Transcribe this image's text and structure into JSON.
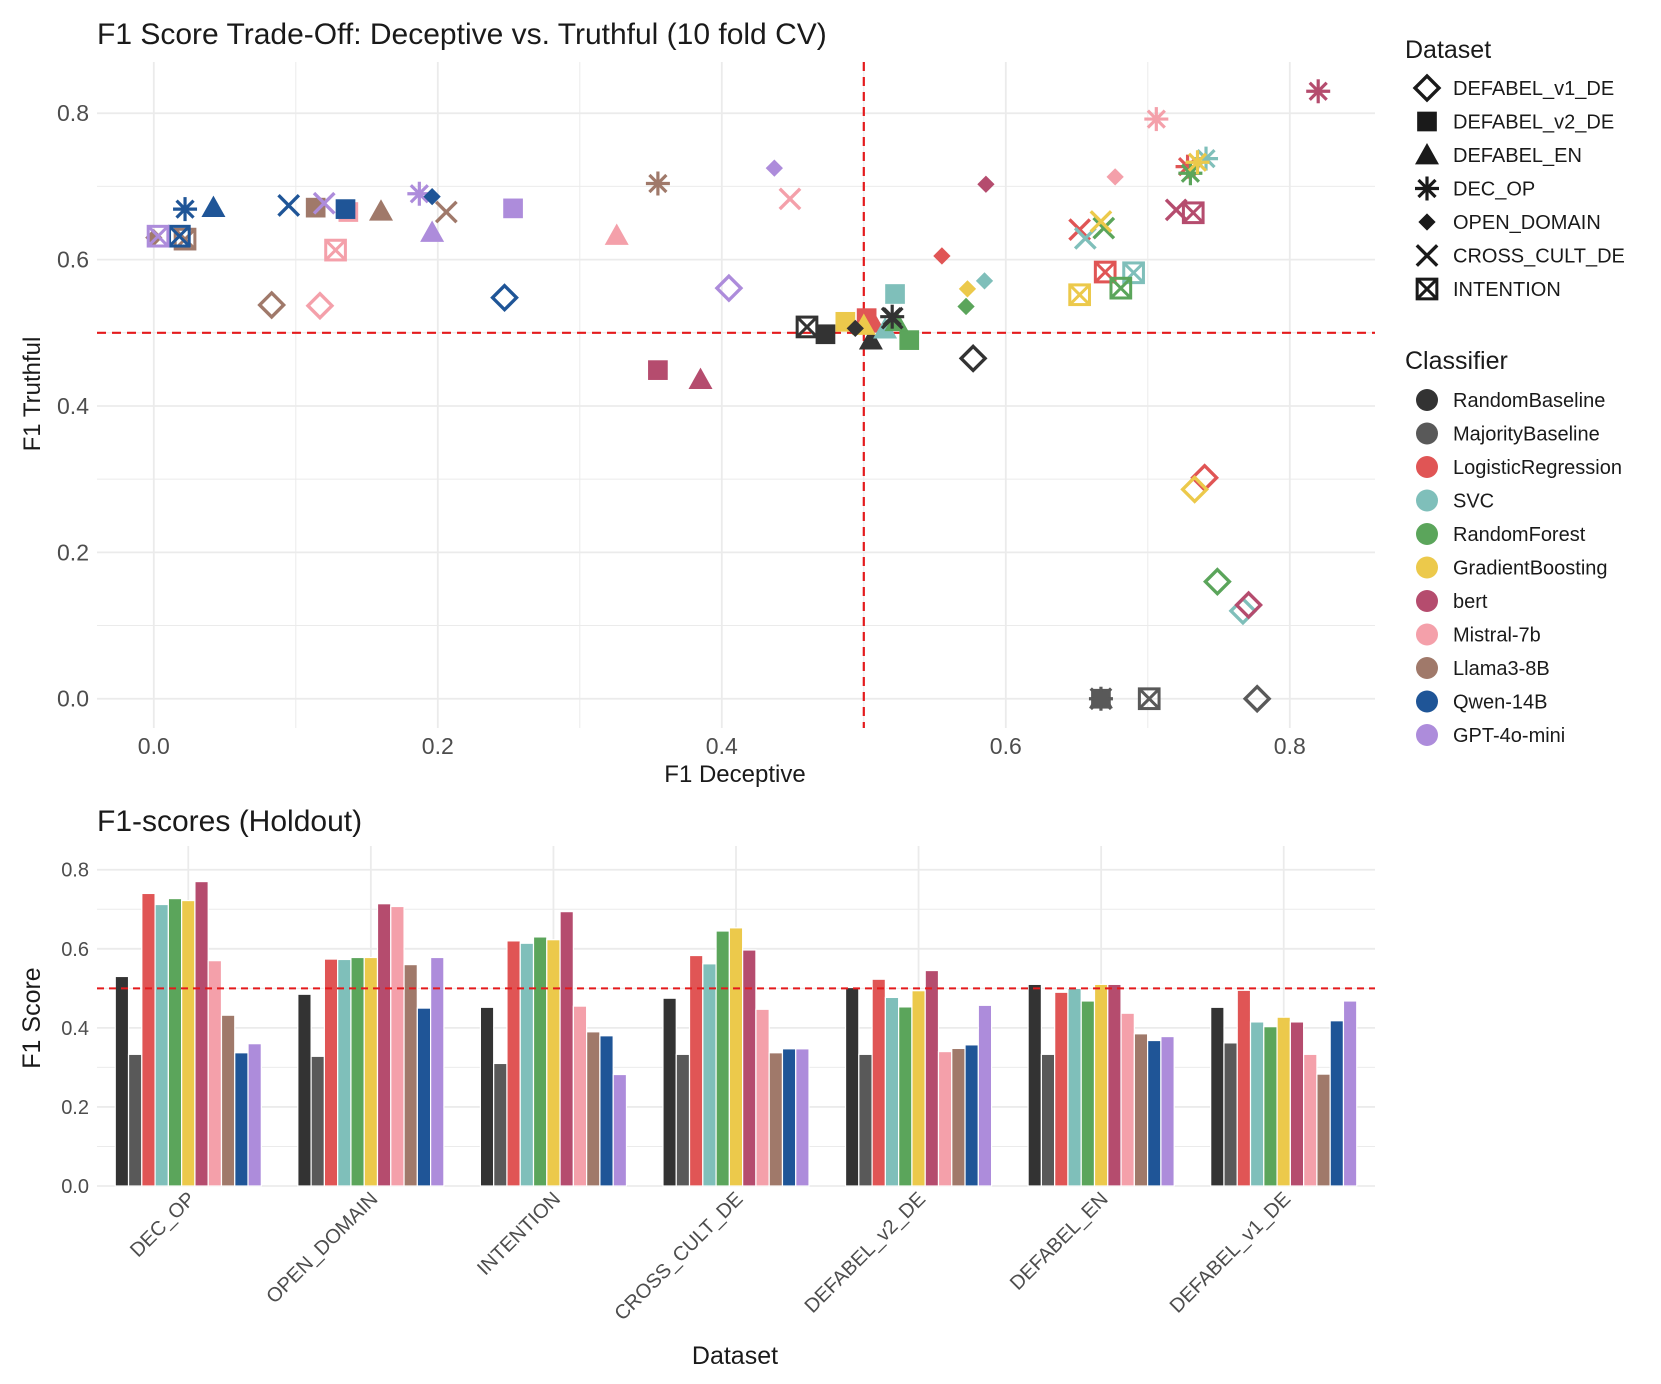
{
  "colors": {
    "grid": "#ebebeb",
    "ref_line": "#e41a1c",
    "axis_text": "#4d4d4d",
    "title_text": "#1a1a1a"
  },
  "classifiers": [
    {
      "name": "RandomBaseline",
      "color": "#333333"
    },
    {
      "name": "MajorityBaseline",
      "color": "#595959"
    },
    {
      "name": "LogisticRegression",
      "color": "#e05555"
    },
    {
      "name": "SVC",
      "color": "#7fbfba"
    },
    {
      "name": "RandomForest",
      "color": "#5ba55b"
    },
    {
      "name": "GradientBoosting",
      "color": "#ecc94b"
    },
    {
      "name": "bert",
      "color": "#b54c6e"
    },
    {
      "name": "Mistral-7b",
      "color": "#f4a0aa"
    },
    {
      "name": "Llama3-8B",
      "color": "#a0796a"
    },
    {
      "name": "Qwen-14B",
      "color": "#1f5597"
    },
    {
      "name": "GPT-4o-mini",
      "color": "#ad8cdb"
    }
  ],
  "datasets_legend": [
    {
      "name": "DEFABEL_v1_DE",
      "shape": "diamond-open"
    },
    {
      "name": "DEFABEL_v2_DE",
      "shape": "square"
    },
    {
      "name": "DEFABEL_EN",
      "shape": "triangle"
    },
    {
      "name": "DEC_OP",
      "shape": "asterisk"
    },
    {
      "name": "OPEN_DOMAIN",
      "shape": "diamond"
    },
    {
      "name": "CROSS_CULT_DE",
      "shape": "cross"
    },
    {
      "name": "INTENTION",
      "shape": "boxx"
    }
  ],
  "legend": {
    "dataset_title": "Dataset",
    "classifier_title": "Classifier"
  },
  "chart_data": [
    {
      "type": "scatter",
      "title": "F1 Score Trade-Off: Deceptive vs. Truthful (10 fold CV)",
      "xlabel": "F1 Deceptive",
      "ylabel": "F1 Truthful",
      "xlim": [
        -0.04,
        0.86
      ],
      "ylim": [
        -0.04,
        0.87
      ],
      "xticks": [
        0.0,
        0.2,
        0.4,
        0.6,
        0.8
      ],
      "yticks": [
        0.0,
        0.2,
        0.4,
        0.6,
        0.8
      ],
      "xtick_labels": [
        "0.0",
        "0.2",
        "0.4",
        "0.6",
        "0.8"
      ],
      "ytick_labels": [
        "0.0",
        "0.2",
        "0.4",
        "0.6",
        "0.8"
      ],
      "ref_x": 0.5,
      "ref_y": 0.5,
      "grid": true,
      "points": [
        {
          "dataset": "DEFABEL_v1_DE",
          "classifier": "RandomBaseline",
          "x": 0.577,
          "y": 0.465
        },
        {
          "dataset": "DEFABEL_v1_DE",
          "classifier": "MajorityBaseline",
          "x": 0.777,
          "y": 0.0
        },
        {
          "dataset": "DEFABEL_v1_DE",
          "classifier": "LogisticRegression",
          "x": 0.74,
          "y": 0.302
        },
        {
          "dataset": "DEFABEL_v1_DE",
          "classifier": "SVC",
          "x": 0.767,
          "y": 0.12
        },
        {
          "dataset": "DEFABEL_v1_DE",
          "classifier": "RandomForest",
          "x": 0.749,
          "y": 0.16
        },
        {
          "dataset": "DEFABEL_v1_DE",
          "classifier": "GradientBoosting",
          "x": 0.733,
          "y": 0.286
        },
        {
          "dataset": "DEFABEL_v1_DE",
          "classifier": "bert",
          "x": 0.771,
          "y": 0.128
        },
        {
          "dataset": "DEFABEL_v1_DE",
          "classifier": "Mistral-7b",
          "x": 0.117,
          "y": 0.537
        },
        {
          "dataset": "DEFABEL_v1_DE",
          "classifier": "Llama3-8B",
          "x": 0.083,
          "y": 0.538
        },
        {
          "dataset": "DEFABEL_v1_DE",
          "classifier": "Qwen-14B",
          "x": 0.247,
          "y": 0.548
        },
        {
          "dataset": "DEFABEL_v1_DE",
          "classifier": "GPT-4o-mini",
          "x": 0.405,
          "y": 0.561
        },
        {
          "dataset": "DEFABEL_v2_DE",
          "classifier": "RandomBaseline",
          "x": 0.473,
          "y": 0.498
        },
        {
          "dataset": "DEFABEL_v2_DE",
          "classifier": "MajorityBaseline",
          "x": 0.667,
          "y": 0.0
        },
        {
          "dataset": "DEFABEL_v2_DE",
          "classifier": "LogisticRegression",
          "x": 0.502,
          "y": 0.52
        },
        {
          "dataset": "DEFABEL_v2_DE",
          "classifier": "SVC",
          "x": 0.522,
          "y": 0.553
        },
        {
          "dataset": "DEFABEL_v2_DE",
          "classifier": "RandomForest",
          "x": 0.532,
          "y": 0.49
        },
        {
          "dataset": "DEFABEL_v2_DE",
          "classifier": "GradientBoosting",
          "x": 0.487,
          "y": 0.515
        },
        {
          "dataset": "DEFABEL_v2_DE",
          "classifier": "bert",
          "x": 0.355,
          "y": 0.449
        },
        {
          "dataset": "DEFABEL_v2_DE",
          "classifier": "Mistral-7b",
          "x": 0.137,
          "y": 0.665
        },
        {
          "dataset": "DEFABEL_v2_DE",
          "classifier": "Llama3-8B",
          "x": 0.114,
          "y": 0.671
        },
        {
          "dataset": "DEFABEL_v2_DE",
          "classifier": "Qwen-14B",
          "x": 0.135,
          "y": 0.669
        },
        {
          "dataset": "DEFABEL_v2_DE",
          "classifier": "GPT-4o-mini",
          "x": 0.253,
          "y": 0.67
        },
        {
          "dataset": "DEFABEL_EN",
          "classifier": "RandomBaseline",
          "x": 0.505,
          "y": 0.49
        },
        {
          "dataset": "DEFABEL_EN",
          "classifier": "MajorityBaseline",
          "x": 0.667,
          "y": 0.0
        },
        {
          "dataset": "DEFABEL_EN",
          "classifier": "LogisticRegression",
          "x": 0.507,
          "y": 0.513
        },
        {
          "dataset": "DEFABEL_EN",
          "classifier": "SVC",
          "x": 0.515,
          "y": 0.505
        },
        {
          "dataset": "DEFABEL_EN",
          "classifier": "RandomForest",
          "x": 0.523,
          "y": 0.515
        },
        {
          "dataset": "DEFABEL_EN",
          "classifier": "GradientBoosting",
          "x": 0.5,
          "y": 0.51
        },
        {
          "dataset": "DEFABEL_EN",
          "classifier": "bert",
          "x": 0.385,
          "y": 0.436
        },
        {
          "dataset": "DEFABEL_EN",
          "classifier": "Mistral-7b",
          "x": 0.326,
          "y": 0.633
        },
        {
          "dataset": "DEFABEL_EN",
          "classifier": "Llama3-8B",
          "x": 0.16,
          "y": 0.666
        },
        {
          "dataset": "DEFABEL_EN",
          "classifier": "Qwen-14B",
          "x": 0.042,
          "y": 0.671
        },
        {
          "dataset": "DEFABEL_EN",
          "classifier": "GPT-4o-mini",
          "x": 0.196,
          "y": 0.637
        },
        {
          "dataset": "DEC_OP",
          "classifier": "RandomBaseline",
          "x": 0.52,
          "y": 0.522
        },
        {
          "dataset": "DEC_OP",
          "classifier": "MajorityBaseline",
          "x": 0.667,
          "y": 0.0
        },
        {
          "dataset": "DEC_OP",
          "classifier": "LogisticRegression",
          "x": 0.728,
          "y": 0.727
        },
        {
          "dataset": "DEC_OP",
          "classifier": "SVC",
          "x": 0.741,
          "y": 0.738
        },
        {
          "dataset": "DEC_OP",
          "classifier": "RandomForest",
          "x": 0.73,
          "y": 0.718
        },
        {
          "dataset": "DEC_OP",
          "classifier": "GradientBoosting",
          "x": 0.735,
          "y": 0.733
        },
        {
          "dataset": "DEC_OP",
          "classifier": "bert",
          "x": 0.82,
          "y": 0.83
        },
        {
          "dataset": "DEC_OP",
          "classifier": "Mistral-7b",
          "x": 0.706,
          "y": 0.792
        },
        {
          "dataset": "DEC_OP",
          "classifier": "Llama3-8B",
          "x": 0.355,
          "y": 0.704
        },
        {
          "dataset": "DEC_OP",
          "classifier": "Qwen-14B",
          "x": 0.022,
          "y": 0.669
        },
        {
          "dataset": "DEC_OP",
          "classifier": "GPT-4o-mini",
          "x": 0.187,
          "y": 0.69
        },
        {
          "dataset": "OPEN_DOMAIN",
          "classifier": "RandomBaseline",
          "x": 0.494,
          "y": 0.506
        },
        {
          "dataset": "OPEN_DOMAIN",
          "classifier": "MajorityBaseline",
          "x": 0.667,
          "y": 0.0
        },
        {
          "dataset": "OPEN_DOMAIN",
          "classifier": "LogisticRegression",
          "x": 0.555,
          "y": 0.605
        },
        {
          "dataset": "OPEN_DOMAIN",
          "classifier": "SVC",
          "x": 0.585,
          "y": 0.571
        },
        {
          "dataset": "OPEN_DOMAIN",
          "classifier": "RandomForest",
          "x": 0.572,
          "y": 0.536
        },
        {
          "dataset": "OPEN_DOMAIN",
          "classifier": "GradientBoosting",
          "x": 0.573,
          "y": 0.56
        },
        {
          "dataset": "OPEN_DOMAIN",
          "classifier": "bert",
          "x": 0.586,
          "y": 0.703
        },
        {
          "dataset": "OPEN_DOMAIN",
          "classifier": "Mistral-7b",
          "x": 0.677,
          "y": 0.713
        },
        {
          "dataset": "OPEN_DOMAIN",
          "classifier": "Llama3-8B",
          "x": 0.0,
          "y": 0.63
        },
        {
          "dataset": "OPEN_DOMAIN",
          "classifier": "Qwen-14B",
          "x": 0.196,
          "y": 0.686
        },
        {
          "dataset": "OPEN_DOMAIN",
          "classifier": "GPT-4o-mini",
          "x": 0.437,
          "y": 0.725
        },
        {
          "dataset": "CROSS_CULT_DE",
          "classifier": "RandomBaseline",
          "x": 0.52,
          "y": 0.52
        },
        {
          "dataset": "CROSS_CULT_DE",
          "classifier": "MajorityBaseline",
          "x": 0.667,
          "y": 0.0
        },
        {
          "dataset": "CROSS_CULT_DE",
          "classifier": "LogisticRegression",
          "x": 0.652,
          "y": 0.641
        },
        {
          "dataset": "CROSS_CULT_DE",
          "classifier": "SVC",
          "x": 0.656,
          "y": 0.629
        },
        {
          "dataset": "CROSS_CULT_DE",
          "classifier": "RandomForest",
          "x": 0.669,
          "y": 0.643
        },
        {
          "dataset": "CROSS_CULT_DE",
          "classifier": "GradientBoosting",
          "x": 0.667,
          "y": 0.652
        },
        {
          "dataset": "CROSS_CULT_DE",
          "classifier": "bert",
          "x": 0.72,
          "y": 0.668
        },
        {
          "dataset": "CROSS_CULT_DE",
          "classifier": "Mistral-7b",
          "x": 0.448,
          "y": 0.683
        },
        {
          "dataset": "CROSS_CULT_DE",
          "classifier": "Llama3-8B",
          "x": 0.206,
          "y": 0.665
        },
        {
          "dataset": "CROSS_CULT_DE",
          "classifier": "Qwen-14B",
          "x": 0.095,
          "y": 0.674
        },
        {
          "dataset": "CROSS_CULT_DE",
          "classifier": "GPT-4o-mini",
          "x": 0.12,
          "y": 0.677
        },
        {
          "dataset": "INTENTION",
          "classifier": "RandomBaseline",
          "x": 0.46,
          "y": 0.508
        },
        {
          "dataset": "INTENTION",
          "classifier": "MajorityBaseline",
          "x": 0.701,
          "y": 0.0
        },
        {
          "dataset": "INTENTION",
          "classifier": "LogisticRegression",
          "x": 0.67,
          "y": 0.583
        },
        {
          "dataset": "INTENTION",
          "classifier": "SVC",
          "x": 0.69,
          "y": 0.582
        },
        {
          "dataset": "INTENTION",
          "classifier": "RandomForest",
          "x": 0.681,
          "y": 0.561
        },
        {
          "dataset": "INTENTION",
          "classifier": "GradientBoosting",
          "x": 0.652,
          "y": 0.552
        },
        {
          "dataset": "INTENTION",
          "classifier": "bert",
          "x": 0.732,
          "y": 0.664
        },
        {
          "dataset": "INTENTION",
          "classifier": "Mistral-7b",
          "x": 0.128,
          "y": 0.613
        },
        {
          "dataset": "INTENTION",
          "classifier": "Llama3-8B",
          "x": 0.022,
          "y": 0.628
        },
        {
          "dataset": "INTENTION",
          "classifier": "Qwen-14B",
          "x": 0.018,
          "y": 0.632
        },
        {
          "dataset": "INTENTION",
          "classifier": "GPT-4o-mini",
          "x": 0.003,
          "y": 0.632
        }
      ]
    },
    {
      "type": "bar",
      "title": "F1-scores (Holdout)",
      "xlabel": "Dataset",
      "ylabel": "F1 Score",
      "ylim": [
        0.0,
        0.86
      ],
      "yticks": [
        0.0,
        0.2,
        0.4,
        0.6,
        0.8
      ],
      "ytick_labels": [
        "0.0",
        "0.2",
        "0.4",
        "0.6",
        "0.8"
      ],
      "ref_y": 0.5,
      "grid": true,
      "categories": [
        "DEC_OP",
        "OPEN_DOMAIN",
        "INTENTION",
        "CROSS_CULT_DE",
        "DEFABEL_v2_DE",
        "DEFABEL_EN",
        "DEFABEL_v1_DE"
      ],
      "series": [
        {
          "name": "RandomBaseline",
          "values": [
            0.53,
            0.485,
            0.452,
            0.475,
            0.502,
            0.51,
            0.452
          ]
        },
        {
          "name": "MajorityBaseline",
          "values": [
            0.333,
            0.328,
            0.31,
            0.333,
            0.333,
            0.333,
            0.362
          ]
        },
        {
          "name": "LogisticRegression",
          "values": [
            0.74,
            0.574,
            0.62,
            0.583,
            0.523,
            0.49,
            0.495
          ]
        },
        {
          "name": "SVC",
          "values": [
            0.712,
            0.573,
            0.614,
            0.562,
            0.477,
            0.5,
            0.415
          ]
        },
        {
          "name": "RandomForest",
          "values": [
            0.727,
            0.578,
            0.63,
            0.645,
            0.453,
            0.468,
            0.403
          ]
        },
        {
          "name": "GradientBoosting",
          "values": [
            0.722,
            0.578,
            0.623,
            0.653,
            0.494,
            0.51,
            0.427
          ]
        },
        {
          "name": "bert",
          "values": [
            0.77,
            0.714,
            0.694,
            0.597,
            0.545,
            0.51,
            0.415
          ]
        },
        {
          "name": "Mistral-7b",
          "values": [
            0.57,
            0.707,
            0.455,
            0.447,
            0.34,
            0.437,
            0.333
          ]
        },
        {
          "name": "Llama3-8B",
          "values": [
            0.432,
            0.56,
            0.39,
            0.337,
            0.348,
            0.385,
            0.283
          ]
        },
        {
          "name": "Qwen-14B",
          "values": [
            0.337,
            0.45,
            0.38,
            0.347,
            0.357,
            0.368,
            0.418
          ]
        },
        {
          "name": "GPT-4o-mini",
          "values": [
            0.36,
            0.578,
            0.282,
            0.347,
            0.457,
            0.378,
            0.468
          ]
        }
      ]
    }
  ]
}
